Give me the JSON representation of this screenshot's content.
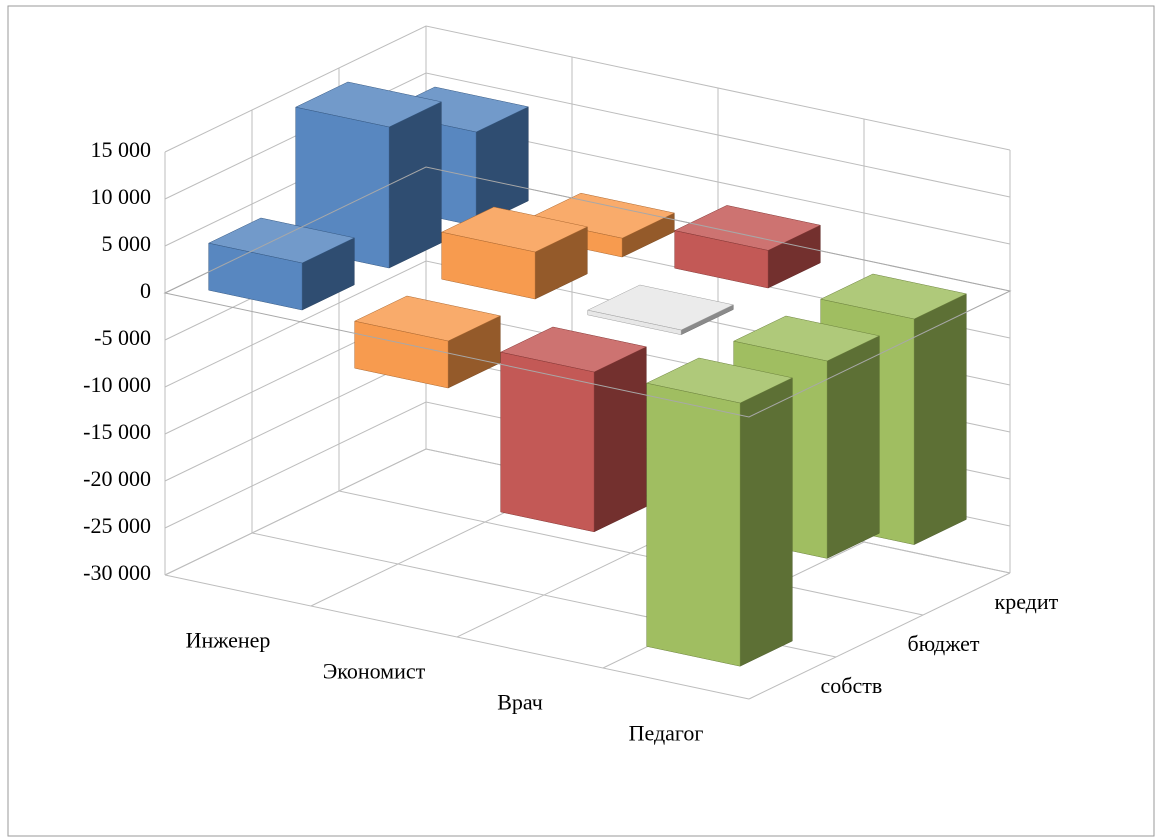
{
  "chart_data": {
    "type": "bar3d",
    "categories": [
      "Инженер",
      "Экономист",
      "Врач",
      "Педагог"
    ],
    "series": [
      {
        "name": "собств",
        "values": [
          5000,
          -5000,
          -17000,
          -28000
        ],
        "colors": [
          "#4f81bd",
          "#f79646",
          "#c0504d",
          "#9bbb59"
        ]
      },
      {
        "name": "бюджет",
        "values": [
          15000,
          5000,
          -500,
          -21000
        ],
        "colors": [
          "#4f81bd",
          "#f79646",
          "#e6e6e6",
          "#9bbb59"
        ]
      },
      {
        "name": "кредит",
        "values": [
          10000,
          2000,
          4000,
          -24000
        ],
        "colors": [
          "#4f81bd",
          "#f79646",
          "#c0504d",
          "#9bbb59"
        ]
      }
    ],
    "ylim": [
      -30000,
      15000
    ],
    "yticks": [
      {
        "value": -30000,
        "label": "-30 000"
      },
      {
        "value": -25000,
        "label": "-25 000"
      },
      {
        "value": -20000,
        "label": "-20 000"
      },
      {
        "value": -15000,
        "label": "-15 000"
      },
      {
        "value": -10000,
        "label": "-10 000"
      },
      {
        "value": -5000,
        "label": "-5 000"
      },
      0,
      {
        "value": 5000,
        "label": "5 000"
      },
      {
        "value": 10000,
        "label": "10 000"
      },
      {
        "value": 15000,
        "label": "15 000"
      }
    ],
    "grid": true
  }
}
